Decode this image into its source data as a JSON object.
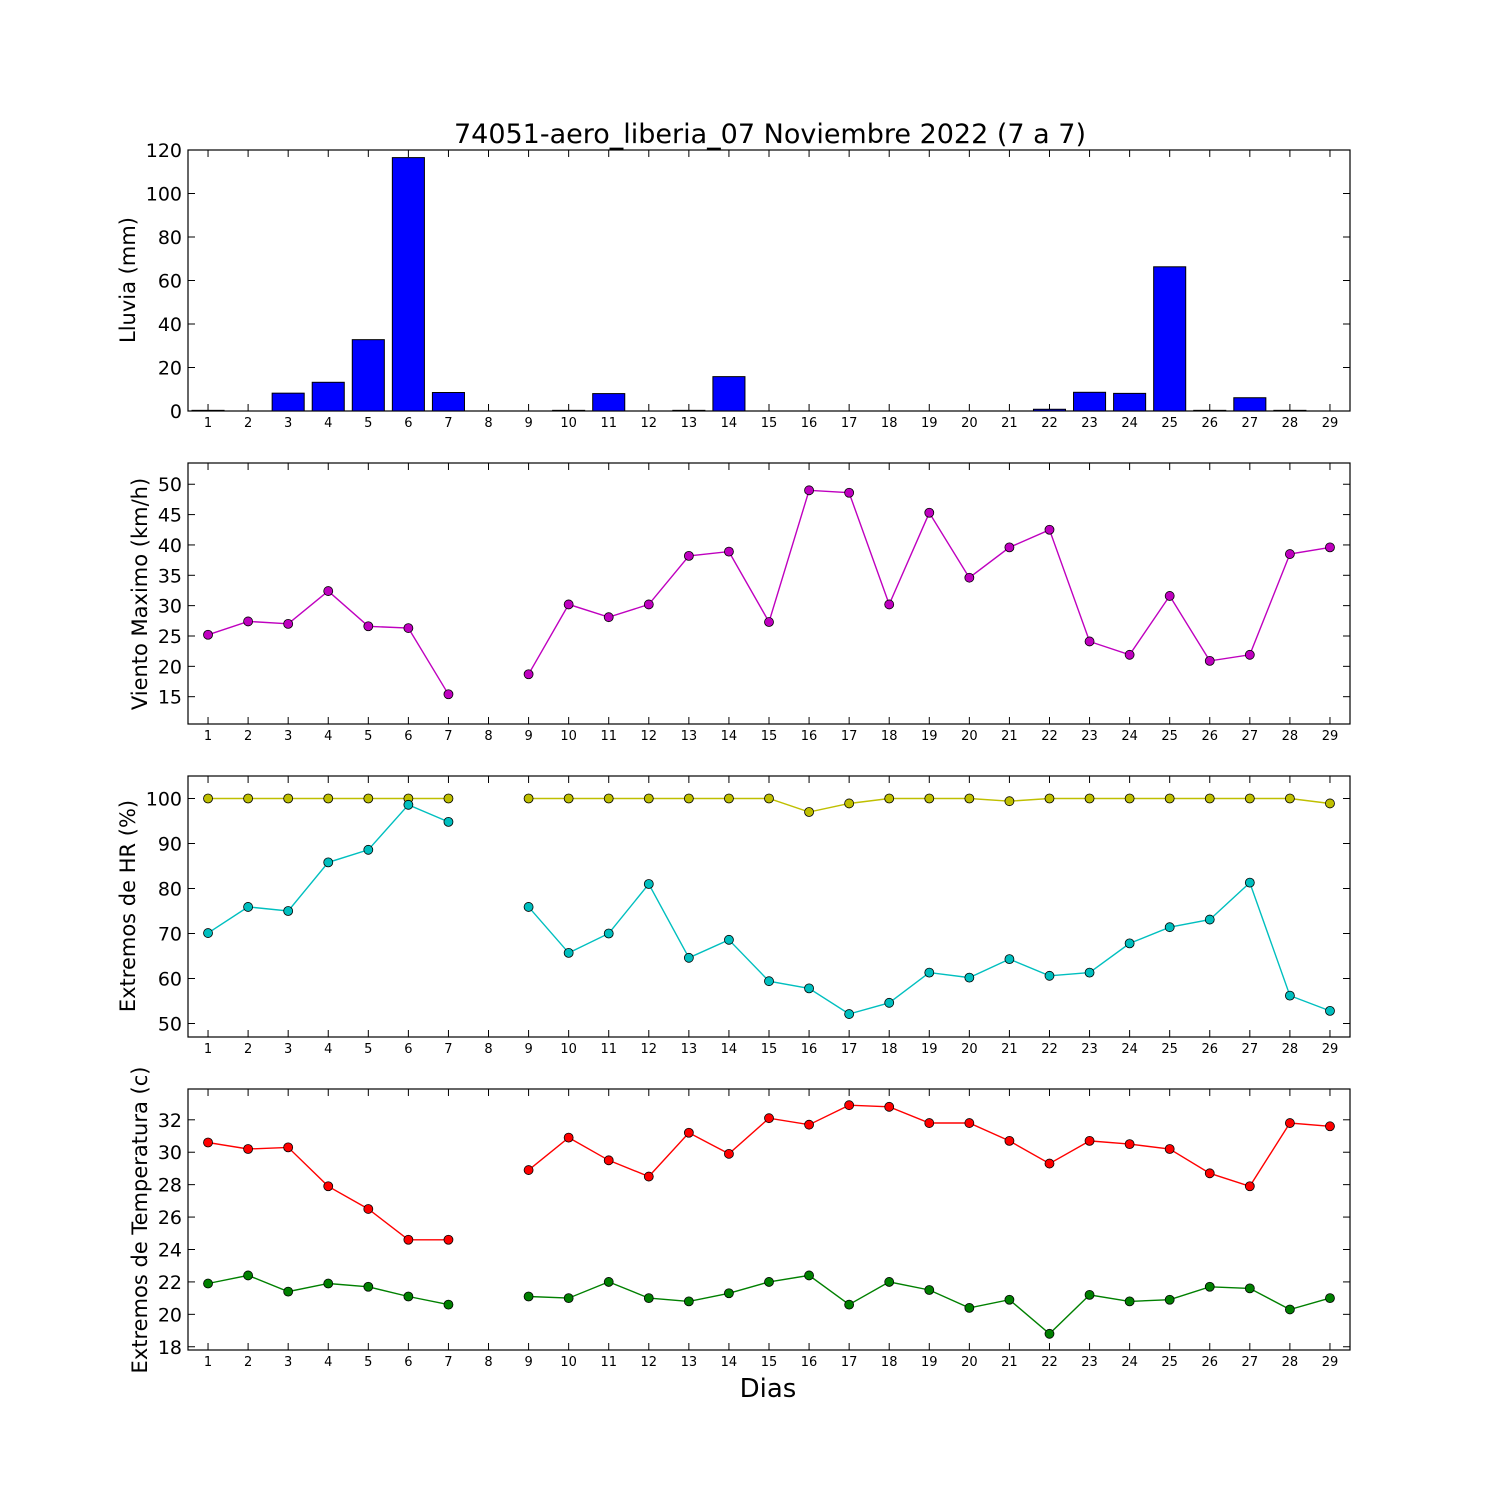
{
  "chart_data": [
    {
      "type": "bar",
      "title": "74051-aero_liberia_07 Noviembre 2022  (7 a 7)",
      "xlabel": "",
      "ylabel": "Lluvia (mm)",
      "ylim": [
        0,
        120
      ],
      "yticks": [
        0,
        20,
        40,
        60,
        80,
        100,
        120
      ],
      "categories": [
        "1",
        "2",
        "3",
        "4",
        "5",
        "6",
        "7",
        "8",
        "9",
        "10",
        "11",
        "12",
        "13",
        "14",
        "15",
        "16",
        "17",
        "18",
        "19",
        "20",
        "21",
        "22",
        "23",
        "24",
        "25",
        "26",
        "27",
        "28",
        "29"
      ],
      "values": [
        0.3,
        0,
        8.2,
        13.2,
        32.8,
        116.5,
        8.5,
        null,
        0,
        0.3,
        8.0,
        0,
        0.3,
        15.8,
        0,
        0,
        0,
        0,
        0,
        0,
        0,
        0.8,
        8.6,
        8.1,
        66.3,
        0.3,
        6.1,
        0.3,
        0
      ],
      "colors": {
        "bar": "#0000ff"
      }
    },
    {
      "type": "line",
      "title": "",
      "xlabel": "",
      "ylabel": "Viento Maximo (km/h)",
      "ylim": [
        10.5,
        53.5
      ],
      "yticks": [
        15,
        20,
        25,
        30,
        35,
        40,
        45,
        50
      ],
      "categories": [
        "1",
        "2",
        "3",
        "4",
        "5",
        "6",
        "7",
        "8",
        "9",
        "10",
        "11",
        "12",
        "13",
        "14",
        "15",
        "16",
        "17",
        "18",
        "19",
        "20",
        "21",
        "22",
        "23",
        "24",
        "25",
        "26",
        "27",
        "28",
        "29"
      ],
      "series": [
        {
          "color": "#bf00bf",
          "values": [
            25.2,
            27.4,
            27.0,
            32.4,
            26.6,
            26.3,
            15.4,
            null,
            18.7,
            30.2,
            28.1,
            30.2,
            38.2,
            38.9,
            27.3,
            49.0,
            48.6,
            30.2,
            45.3,
            34.6,
            39.6,
            42.5,
            24.1,
            21.9,
            31.6,
            20.9,
            21.9,
            38.5,
            39.6
          ]
        }
      ]
    },
    {
      "type": "line",
      "title": "",
      "xlabel": "",
      "ylabel": "Extremos de HR (%)",
      "ylim": [
        47,
        105
      ],
      "yticks": [
        50,
        60,
        70,
        80,
        90,
        100
      ],
      "categories": [
        "1",
        "2",
        "3",
        "4",
        "5",
        "6",
        "7",
        "8",
        "9",
        "10",
        "11",
        "12",
        "13",
        "14",
        "15",
        "16",
        "17",
        "18",
        "19",
        "20",
        "21",
        "22",
        "23",
        "24",
        "25",
        "26",
        "27",
        "28",
        "29"
      ],
      "series": [
        {
          "color": "#bfbf00",
          "values": [
            100,
            100,
            100,
            100,
            100,
            100,
            100,
            null,
            100,
            100,
            100,
            100,
            100,
            100,
            100,
            97,
            98.9,
            100,
            100,
            100,
            99.4,
            100,
            100,
            100,
            100,
            100,
            100,
            100,
            98.9
          ]
        },
        {
          "color": "#00bfbf",
          "values": [
            70.1,
            75.9,
            75.0,
            85.8,
            88.6,
            98.6,
            94.8,
            null,
            75.9,
            65.7,
            70.0,
            81.0,
            64.6,
            68.6,
            59.4,
            57.8,
            52.1,
            54.6,
            61.3,
            60.2,
            64.3,
            60.6,
            61.3,
            67.8,
            71.4,
            73.1,
            81.3,
            56.2,
            52.8
          ]
        }
      ]
    },
    {
      "type": "line",
      "title": "",
      "xlabel": "Dias",
      "ylabel": "Extremos de Temperatura (c)",
      "ylim": [
        17.8,
        33.9
      ],
      "yticks": [
        18,
        20,
        22,
        24,
        26,
        28,
        30,
        32
      ],
      "categories": [
        "1",
        "2",
        "3",
        "4",
        "5",
        "6",
        "7",
        "8",
        "9",
        "10",
        "11",
        "12",
        "13",
        "14",
        "15",
        "16",
        "17",
        "18",
        "19",
        "20",
        "21",
        "22",
        "23",
        "24",
        "25",
        "26",
        "27",
        "28",
        "29"
      ],
      "series": [
        {
          "color": "#ff0000",
          "values": [
            30.6,
            30.2,
            30.3,
            27.9,
            26.5,
            24.6,
            24.6,
            null,
            28.9,
            30.9,
            29.5,
            28.5,
            31.2,
            29.9,
            32.1,
            31.7,
            32.9,
            32.8,
            31.8,
            31.8,
            30.7,
            29.3,
            30.7,
            30.5,
            30.2,
            28.7,
            27.9,
            31.8,
            31.6
          ]
        },
        {
          "color": "#008000",
          "values": [
            21.9,
            22.4,
            21.4,
            21.9,
            21.7,
            21.1,
            20.6,
            null,
            21.1,
            21.0,
            22.0,
            21.0,
            20.8,
            21.3,
            22.0,
            22.4,
            20.6,
            22.0,
            21.5,
            20.4,
            20.9,
            18.8,
            21.2,
            20.8,
            20.9,
            21.7,
            21.6,
            20.3,
            21.0
          ]
        }
      ]
    }
  ]
}
